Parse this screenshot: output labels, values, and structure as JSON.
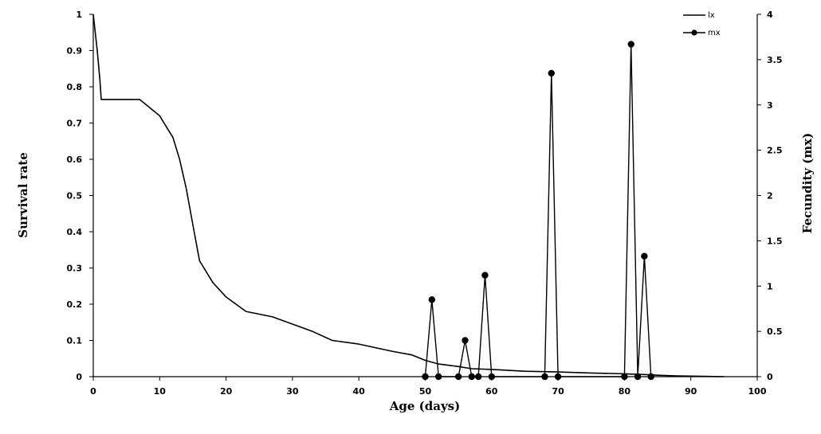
{
  "chart_data": {
    "type": "line",
    "xlabel": "Age (days)",
    "ylabel_left": "Survival rate",
    "ylabel_right": "Fecundity (mx)",
    "xlim": [
      0,
      100
    ],
    "ylim_left": [
      0,
      1
    ],
    "ylim_right": [
      0,
      4
    ],
    "x_ticks": [
      "0",
      "10",
      "20",
      "30",
      "40",
      "50",
      "60",
      "70",
      "80",
      "90",
      "100"
    ],
    "y_left_ticks": [
      "0",
      "0.1",
      "0.2",
      "0.3",
      "0.4",
      "0.5",
      "0.6",
      "0.7",
      "0.8",
      "0.9",
      "1"
    ],
    "y_right_ticks": [
      "0",
      "0.5",
      "1",
      "1.5",
      "2",
      "2.5",
      "3",
      "3.5",
      "4"
    ],
    "grid": false,
    "legend_position": "top-right",
    "series": [
      {
        "name": "lx",
        "axis": "left",
        "marker": "none",
        "color": "#000000",
        "points": [
          [
            0,
            1
          ],
          [
            0.3,
            0.95
          ],
          [
            0.6,
            0.9
          ],
          [
            1,
            0.82
          ],
          [
            1.2,
            0.765
          ],
          [
            2,
            0.765
          ],
          [
            4,
            0.765
          ],
          [
            7,
            0.765
          ],
          [
            8,
            0.75
          ],
          [
            10,
            0.72
          ],
          [
            11,
            0.69
          ],
          [
            12,
            0.66
          ],
          [
            13,
            0.6
          ],
          [
            14,
            0.52
          ],
          [
            15,
            0.42
          ],
          [
            16,
            0.32
          ],
          [
            18,
            0.26
          ],
          [
            20,
            0.22
          ],
          [
            23,
            0.18
          ],
          [
            27,
            0.165
          ],
          [
            30,
            0.145
          ],
          [
            33,
            0.125
          ],
          [
            36,
            0.1
          ],
          [
            40,
            0.09
          ],
          [
            45,
            0.07
          ],
          [
            48,
            0.06
          ],
          [
            50,
            0.045
          ],
          [
            52,
            0.035
          ],
          [
            55,
            0.028
          ],
          [
            57,
            0.022
          ],
          [
            60,
            0.02
          ],
          [
            65,
            0.015
          ],
          [
            70,
            0.013
          ],
          [
            75,
            0.01
          ],
          [
            80,
            0.008
          ],
          [
            83,
            0.006
          ],
          [
            85,
            0.004
          ],
          [
            88,
            0.002
          ],
          [
            95,
            0
          ]
        ]
      },
      {
        "name": "mx",
        "axis": "right",
        "marker": "circle",
        "color": "#000000",
        "points": [
          [
            50,
            0
          ],
          [
            51,
            0.85
          ],
          [
            52,
            0
          ],
          [
            55,
            0
          ],
          [
            56,
            0.4
          ],
          [
            57,
            0
          ],
          [
            58,
            0
          ],
          [
            59,
            1.12
          ],
          [
            60,
            0
          ],
          [
            68,
            0
          ],
          [
            69,
            3.35
          ],
          [
            70,
            0
          ],
          [
            80,
            0
          ],
          [
            81,
            3.67
          ],
          [
            82,
            0
          ],
          [
            83,
            1.33
          ],
          [
            84,
            0
          ]
        ]
      }
    ]
  }
}
